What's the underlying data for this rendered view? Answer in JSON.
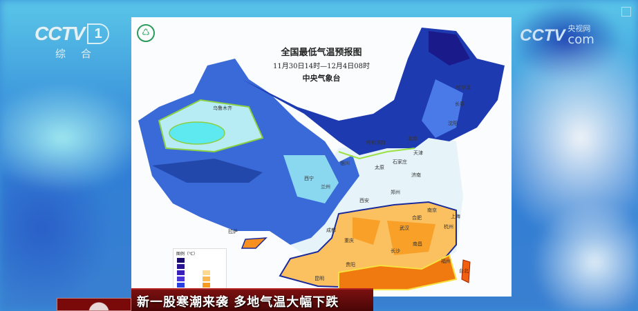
{
  "channel_logo": {
    "brand": "CCTV",
    "number": "1",
    "subtitle": "综合"
  },
  "web_logo": {
    "brand": "CCTV",
    "chinese": "央视网",
    "domain": "com"
  },
  "map": {
    "title": "全国最低气温预报图",
    "period": "11月30日14时—12月4日08时",
    "issuer": "中央气象台",
    "legend_title": "图例（℃）",
    "cold_colors": [
      "#1a0a6a",
      "#2a1490",
      "#3a20b8",
      "#4a34d8",
      "#2a40e0",
      "#1a3ab0"
    ],
    "warm_colors": [
      "#fcd890",
      "#fbb850",
      "#f89a20",
      "#f07a10"
    ],
    "cities": [
      "乌鲁木齐",
      "哈尔滨",
      "长春",
      "沈阳",
      "北京",
      "呼和浩特",
      "天津",
      "银川",
      "太原",
      "石家庄",
      "济南",
      "西宁",
      "兰州",
      "郑州",
      "西安",
      "南京",
      "合肥",
      "上海",
      "杭州",
      "成都",
      "武汉",
      "重庆",
      "南昌",
      "长沙",
      "拉萨",
      "贵阳",
      "福州",
      "昆明",
      "台北"
    ]
  },
  "caption": "新一股寒潮来袭 多地气温大幅下跌"
}
